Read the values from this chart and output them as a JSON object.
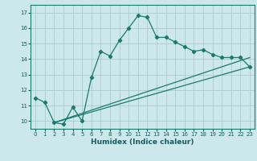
{
  "xlabel": "Humidex (Indice chaleur)",
  "bg_color": "#cce8ea",
  "grid_color": "#aaccce",
  "line_color": "#1a7a6e",
  "spine_color": "#1a7a6e",
  "xlim": [
    -0.5,
    23.5
  ],
  "ylim": [
    9.5,
    17.5
  ],
  "xticks": [
    0,
    1,
    2,
    3,
    4,
    5,
    6,
    7,
    8,
    9,
    10,
    11,
    12,
    13,
    14,
    15,
    16,
    17,
    18,
    19,
    20,
    21,
    22,
    23
  ],
  "yticks": [
    10,
    11,
    12,
    13,
    14,
    15,
    16,
    17
  ],
  "line1_x": [
    0,
    1,
    2,
    3,
    4,
    5,
    6,
    7,
    8,
    9,
    10,
    11,
    12,
    13,
    14,
    15,
    16,
    17,
    18,
    19,
    20,
    21,
    22,
    23
  ],
  "line1_y": [
    11.5,
    11.2,
    9.9,
    9.8,
    10.9,
    10.0,
    12.8,
    14.5,
    14.2,
    15.2,
    16.0,
    16.8,
    16.7,
    15.4,
    15.4,
    15.1,
    14.8,
    14.5,
    14.6,
    14.3,
    14.1,
    14.1,
    14.1,
    13.5
  ],
  "line2_x": [
    2,
    23
  ],
  "line2_y": [
    9.9,
    14.1
  ],
  "line3_x": [
    2,
    23
  ],
  "line3_y": [
    9.9,
    13.5
  ],
  "xlabel_fontsize": 6.5,
  "tick_fontsize": 5.0,
  "tick_color": "#1a5a5e"
}
